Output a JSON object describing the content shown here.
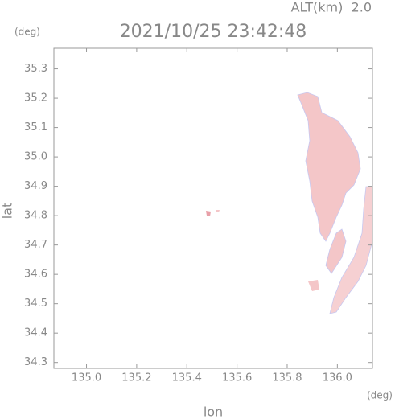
{
  "chart_data": {
    "type": "map",
    "title": "2021/10/25 23:42:48",
    "altitude_label": "ALT(km)  2.0",
    "x_label": "lon",
    "y_label": "lat",
    "x_unit": "(deg)",
    "y_unit": "(deg)",
    "xlim": [
      134.87,
      136.14
    ],
    "ylim": [
      34.28,
      35.37
    ],
    "xticks": [
      {
        "value": 135,
        "label": "135.0"
      },
      135.2,
      135.4,
      135.6,
      135.8,
      {
        "value": 136,
        "label": "136.0"
      }
    ],
    "yticks": [
      34.3,
      34.4,
      34.5,
      34.6,
      34.7,
      34.8,
      34.9,
      {
        "value": 35,
        "label": "35.0"
      },
      35.1,
      35.2,
      35.3
    ],
    "color": "#f4c4c7"
  }
}
